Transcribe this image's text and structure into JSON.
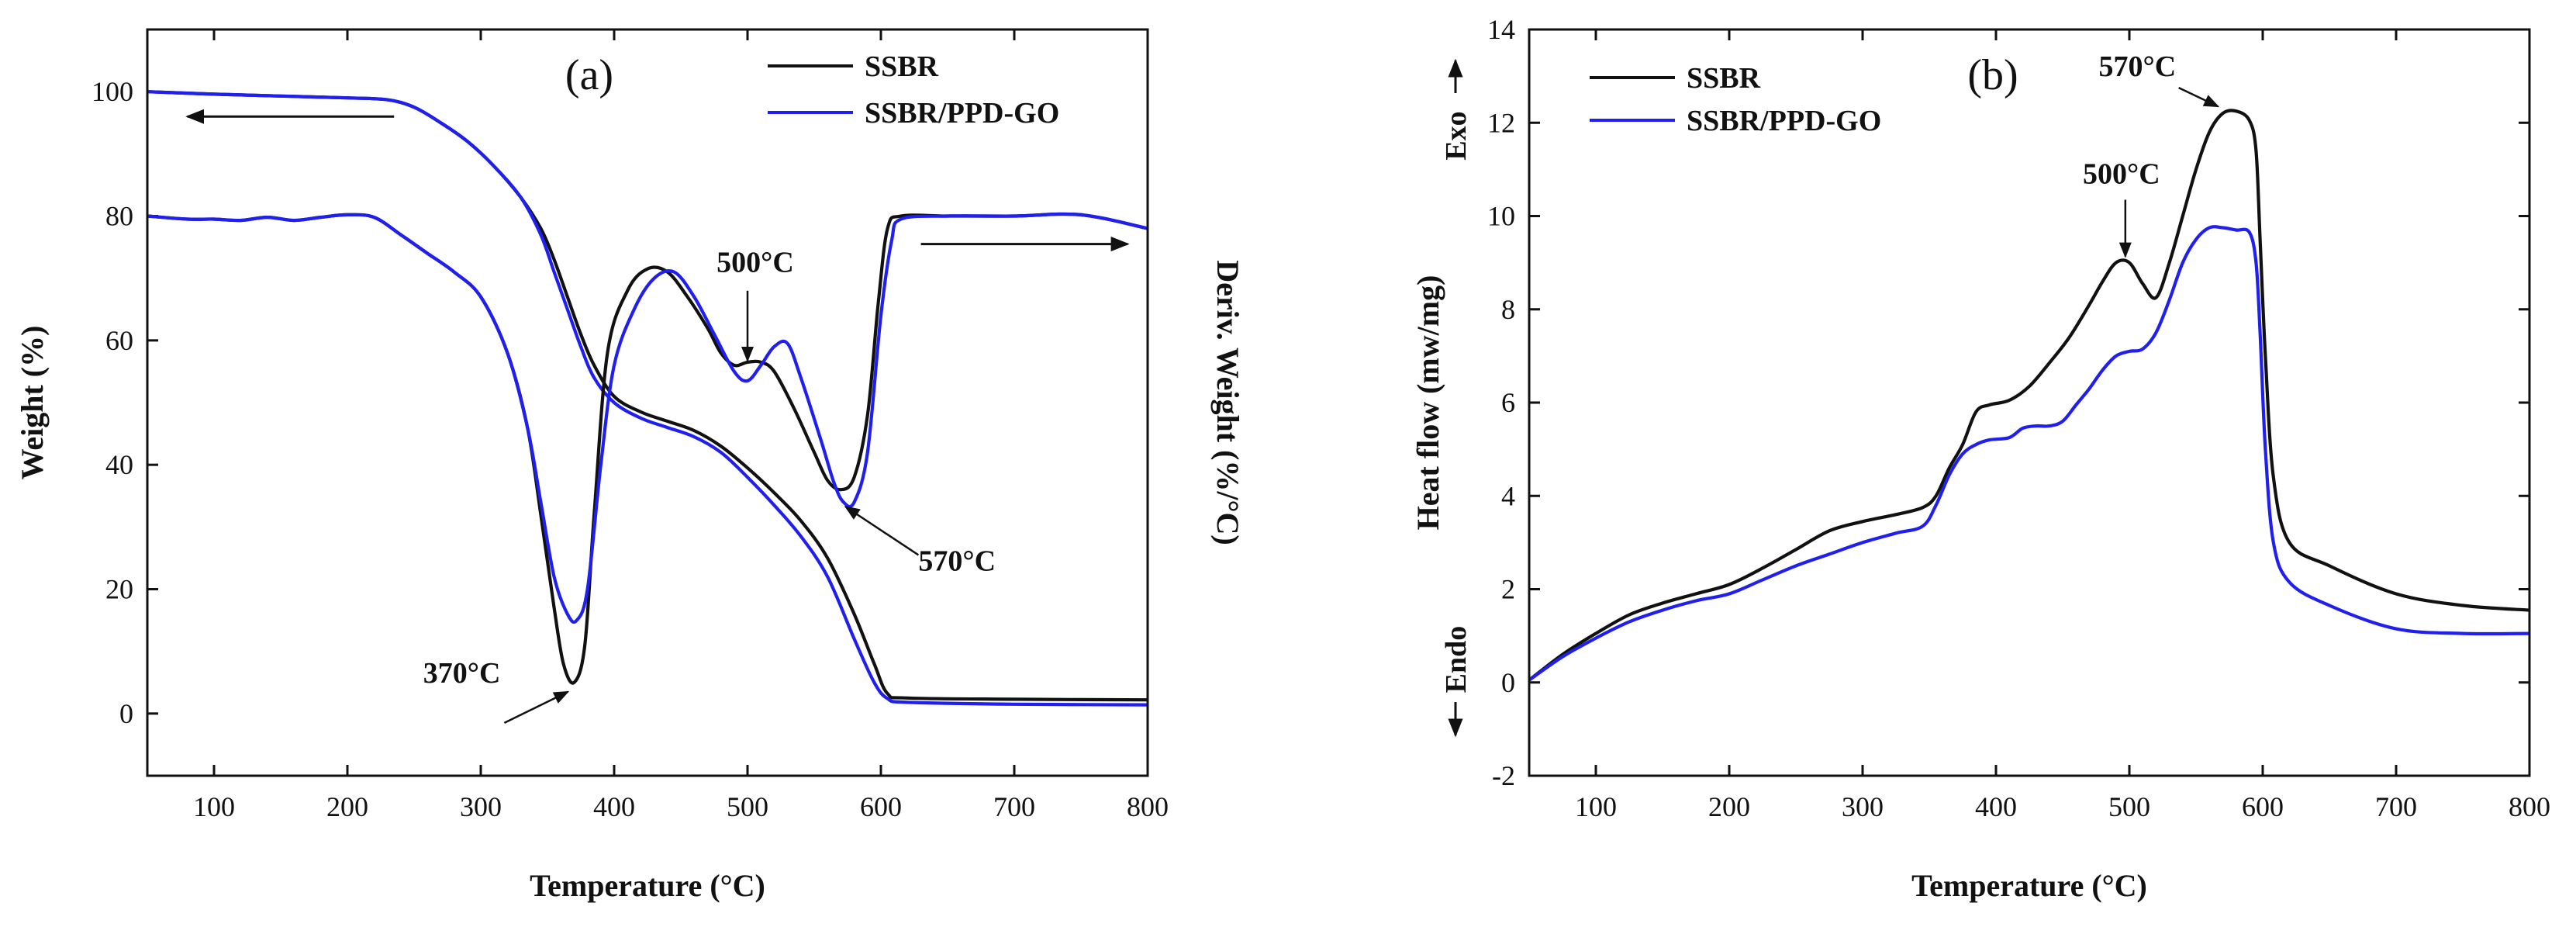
{
  "chart_data": [
    {
      "type": "line",
      "panel_label": "(a)",
      "xlabel": "Temperature (°C)",
      "ylabel": "Weight (%)",
      "ylabel_right": "Deriv. Weight (%/°C)",
      "xlim": [
        50,
        800
      ],
      "ylim": [
        -10,
        110
      ],
      "x_ticks": [
        100,
        200,
        300,
        400,
        500,
        600,
        700,
        800
      ],
      "y_ticks": [
        0,
        20,
        40,
        60,
        80,
        100
      ],
      "legend": {
        "placement": "top-right",
        "entries": [
          "SSBR",
          "SSBR/PPD-GO"
        ]
      },
      "colors": {
        "SSBR": "#111111",
        "SSBR/PPD-GO": "#1f1ff0"
      },
      "series": [
        {
          "name": "SSBR",
          "role": "weight",
          "x": [
            50,
            100,
            150,
            200,
            230,
            250,
            270,
            290,
            310,
            330,
            345,
            355,
            365,
            375,
            385,
            400,
            420,
            440,
            460,
            480,
            500,
            520,
            540,
            560,
            580,
            595,
            605,
            620,
            700,
            800
          ],
          "y": [
            100,
            99.6,
            99.3,
            99.0,
            98.7,
            97.5,
            95,
            92,
            88,
            83,
            78,
            73,
            67,
            61,
            56,
            51,
            48.5,
            47,
            45.5,
            43,
            39.5,
            35.5,
            31,
            25,
            16,
            8,
            3.2,
            2.5,
            2.3,
            2.2
          ]
        },
        {
          "name": "SSBR/PPD-GO",
          "role": "weight",
          "x": [
            50,
            100,
            150,
            200,
            230,
            250,
            270,
            290,
            310,
            330,
            345,
            355,
            365,
            375,
            385,
            400,
            420,
            440,
            460,
            480,
            500,
            520,
            540,
            560,
            580,
            595,
            605,
            620,
            700,
            800
          ],
          "y": [
            100,
            99.6,
            99.3,
            99.0,
            98.7,
            97.5,
            95,
            92,
            88,
            83,
            77,
            71,
            65,
            59,
            54,
            50,
            47.5,
            46,
            44.5,
            42,
            38,
            33.5,
            28.5,
            22,
            12,
            5,
            2.4,
            1.8,
            1.5,
            1.4
          ]
        },
        {
          "name": "SSBR",
          "role": "derivative",
          "x": [
            50,
            80,
            100,
            120,
            140,
            160,
            180,
            200,
            220,
            240,
            260,
            280,
            300,
            320,
            335,
            345,
            355,
            362,
            370,
            378,
            385,
            395,
            410,
            425,
            440,
            455,
            470,
            480,
            490,
            500,
            510,
            520,
            535,
            550,
            560,
            570,
            580,
            590,
            598,
            605,
            615,
            650,
            700,
            750,
            800
          ],
          "y": [
            80,
            79.5,
            79.5,
            79.3,
            79.8,
            79.3,
            79.8,
            80.2,
            79.8,
            77,
            74,
            71,
            67,
            58,
            46,
            32,
            17,
            8,
            5,
            11,
            32,
            58,
            68,
            71.5,
            71,
            67,
            62,
            58,
            56,
            56.5,
            56.5,
            55,
            49,
            42,
            37.5,
            36,
            38,
            48,
            66,
            78,
            80,
            80,
            80,
            80.2,
            78
          ]
        },
        {
          "name": "SSBR/PPD-GO",
          "role": "derivative",
          "x": [
            50,
            80,
            100,
            120,
            140,
            160,
            180,
            200,
            220,
            240,
            260,
            280,
            300,
            320,
            335,
            345,
            355,
            365,
            372,
            380,
            390,
            400,
            415,
            430,
            445,
            460,
            475,
            490,
            500,
            510,
            520,
            530,
            540,
            555,
            565,
            572,
            580,
            590,
            600,
            608,
            615,
            650,
            700,
            750,
            800
          ],
          "y": [
            80,
            79.5,
            79.5,
            79.3,
            79.8,
            79.3,
            79.8,
            80.2,
            79.8,
            77,
            74,
            71,
            67,
            58,
            46,
            34,
            22,
            16,
            15,
            20,
            40,
            56,
            65,
            70,
            71,
            67,
            61,
            55,
            53.5,
            56,
            59,
            59.5,
            54,
            44,
            37,
            34,
            34,
            42,
            64,
            76,
            79.5,
            80,
            80,
            80.2,
            78
          ]
        }
      ],
      "annotations": [
        {
          "text": "370°C",
          "x": 370,
          "y": 5
        },
        {
          "text": "500°C",
          "x": 500,
          "y": 56
        },
        {
          "text": "570°C",
          "x": 570,
          "y": 34
        }
      ],
      "arrows": [
        {
          "direction": "left",
          "from": [
            235,
            96
          ],
          "to": [
            80,
            96
          ],
          "meaning": "weight axis (left)"
        },
        {
          "direction": "right",
          "from": [
            630,
            75.5
          ],
          "to": [
            785,
            75.5
          ],
          "meaning": "derivative axis (right)"
        }
      ]
    },
    {
      "type": "line",
      "panel_label": "(b)",
      "xlabel": "Temperature (°C)",
      "ylabel": "Heat flow (mw/mg)",
      "ylim": [
        -2,
        14
      ],
      "xlim": [
        50,
        800
      ],
      "x_ticks": [
        100,
        200,
        300,
        400,
        500,
        600,
        700,
        800
      ],
      "y_ticks": [
        -2,
        0,
        2,
        4,
        6,
        8,
        10,
        12,
        14
      ],
      "axis_markers": {
        "top": "Exo",
        "bottom": "Endo"
      },
      "legend": {
        "placement": "top-left",
        "entries": [
          "SSBR",
          "SSBR/PPD-GO"
        ]
      },
      "colors": {
        "SSBR": "#111111",
        "SSBR/PPD-GO": "#1f1ff0"
      },
      "series": [
        {
          "name": "SSBR",
          "x": [
            50,
            75,
            100,
            125,
            150,
            175,
            200,
            225,
            250,
            275,
            300,
            325,
            345,
            355,
            365,
            375,
            385,
            395,
            410,
            425,
            440,
            455,
            470,
            480,
            490,
            500,
            510,
            520,
            530,
            540,
            550,
            560,
            570,
            580,
            590,
            595,
            598,
            602,
            608,
            620,
            650,
            700,
            750,
            800
          ],
          "y": [
            0.05,
            0.6,
            1.05,
            1.45,
            1.7,
            1.9,
            2.1,
            2.45,
            2.85,
            3.25,
            3.45,
            3.6,
            3.75,
            4.0,
            4.6,
            5.1,
            5.8,
            5.95,
            6.05,
            6.35,
            6.85,
            7.4,
            8.1,
            8.6,
            9.0,
            9.0,
            8.55,
            8.25,
            9.0,
            10.0,
            11.0,
            11.8,
            12.2,
            12.25,
            12.05,
            11.4,
            9.5,
            7.0,
            4.4,
            3.0,
            2.5,
            1.9,
            1.65,
            1.55
          ]
        },
        {
          "name": "SSBR/PPD-GO",
          "x": [
            50,
            75,
            100,
            125,
            150,
            175,
            200,
            225,
            250,
            275,
            300,
            325,
            345,
            355,
            365,
            375,
            385,
            395,
            410,
            420,
            430,
            440,
            450,
            460,
            470,
            480,
            490,
            500,
            510,
            520,
            530,
            540,
            550,
            560,
            570,
            580,
            590,
            595,
            598,
            602,
            608,
            620,
            650,
            700,
            750,
            800
          ],
          "y": [
            0.05,
            0.55,
            0.95,
            1.3,
            1.55,
            1.75,
            1.9,
            2.2,
            2.5,
            2.75,
            3.0,
            3.2,
            3.35,
            3.8,
            4.45,
            4.9,
            5.1,
            5.2,
            5.25,
            5.45,
            5.5,
            5.5,
            5.6,
            5.95,
            6.3,
            6.7,
            7.0,
            7.1,
            7.15,
            7.5,
            8.2,
            9.0,
            9.5,
            9.75,
            9.75,
            9.7,
            9.65,
            9.0,
            7.5,
            5.0,
            3.0,
            2.15,
            1.65,
            1.15,
            1.05,
            1.05
          ]
        }
      ],
      "annotations": [
        {
          "text": "500°C",
          "x": 497,
          "y": 9.0
        },
        {
          "text": "570°C",
          "x": 570,
          "y": 12.25
        }
      ]
    }
  ]
}
